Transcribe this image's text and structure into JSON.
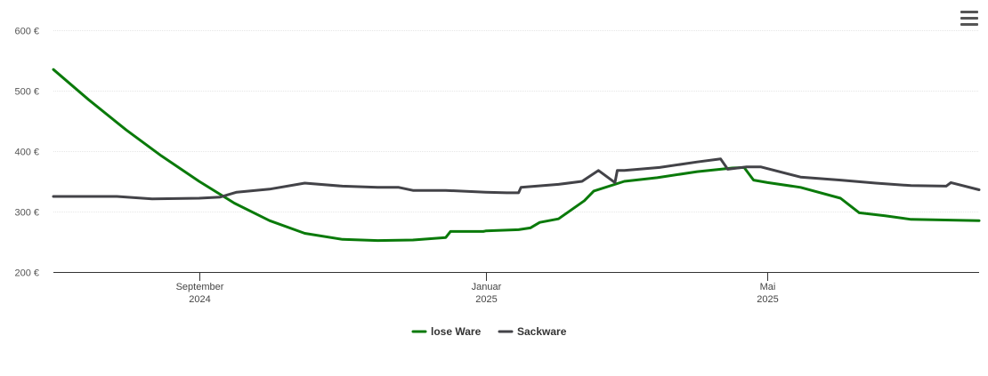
{
  "menu_icon": "hamburger-menu-icon",
  "chart_data": {
    "type": "line",
    "currency": "€",
    "ylim": [
      200,
      600
    ],
    "yticks": [
      {
        "value": 200,
        "label": "200 €"
      },
      {
        "value": 300,
        "label": "300 €"
      },
      {
        "value": 400,
        "label": "400 €"
      },
      {
        "value": 500,
        "label": "500 €"
      },
      {
        "value": 600,
        "label": "600 €"
      }
    ],
    "xlim": [
      "2024-07-01",
      "2025-07-30"
    ],
    "xticks": [
      {
        "date": "2024-09-01",
        "label_month": "September",
        "label_year": "2024"
      },
      {
        "date": "2025-01-01",
        "label_month": "Januar",
        "label_year": "2025"
      },
      {
        "date": "2025-05-01",
        "label_month": "Mai",
        "label_year": "2025"
      }
    ],
    "grid": true,
    "legend_position": "bottom-center",
    "series": [
      {
        "name": "lose Ware",
        "color": "#0a7a0a",
        "points": [
          [
            "2024-07-01",
            535
          ],
          [
            "2024-07-16",
            485
          ],
          [
            "2024-08-01",
            435
          ],
          [
            "2024-08-16",
            392
          ],
          [
            "2024-09-01",
            350
          ],
          [
            "2024-09-16",
            314
          ],
          [
            "2024-10-01",
            285
          ],
          [
            "2024-10-16",
            264
          ],
          [
            "2024-11-01",
            254
          ],
          [
            "2024-11-16",
            252
          ],
          [
            "2024-12-01",
            253
          ],
          [
            "2024-12-15",
            257
          ],
          [
            "2024-12-17",
            267
          ],
          [
            "2024-12-31",
            267
          ],
          [
            "2025-01-01",
            268
          ],
          [
            "2025-01-15",
            270
          ],
          [
            "2025-01-20",
            273
          ],
          [
            "2025-01-24",
            282
          ],
          [
            "2025-02-01",
            288
          ],
          [
            "2025-02-12",
            318
          ],
          [
            "2025-02-16",
            334
          ],
          [
            "2025-03-01",
            350
          ],
          [
            "2025-03-15",
            356
          ],
          [
            "2025-04-01",
            366
          ],
          [
            "2025-04-16",
            372
          ],
          [
            "2025-04-21",
            373
          ],
          [
            "2025-04-25",
            352
          ],
          [
            "2025-05-01",
            348
          ],
          [
            "2025-05-15",
            340
          ],
          [
            "2025-06-01",
            322
          ],
          [
            "2025-06-05",
            310
          ],
          [
            "2025-06-09",
            298
          ],
          [
            "2025-06-20",
            293
          ],
          [
            "2025-07-01",
            287
          ],
          [
            "2025-07-30",
            285
          ]
        ]
      },
      {
        "name": "Sackware",
        "color": "#434348",
        "points": [
          [
            "2024-07-01",
            325
          ],
          [
            "2024-07-28",
            325
          ],
          [
            "2024-08-12",
            321
          ],
          [
            "2024-09-01",
            322
          ],
          [
            "2024-09-10",
            324
          ],
          [
            "2024-09-17",
            332
          ],
          [
            "2024-10-01",
            337
          ],
          [
            "2024-10-16",
            347
          ],
          [
            "2024-11-01",
            342
          ],
          [
            "2024-11-16",
            340
          ],
          [
            "2024-11-25",
            340
          ],
          [
            "2024-12-01",
            335
          ],
          [
            "2024-12-15",
            335
          ],
          [
            "2025-01-01",
            332
          ],
          [
            "2025-01-10",
            331
          ],
          [
            "2025-01-15",
            331
          ],
          [
            "2025-01-16",
            340
          ],
          [
            "2025-02-01",
            345
          ],
          [
            "2025-02-11",
            350
          ],
          [
            "2025-02-18",
            368
          ],
          [
            "2025-02-25",
            348
          ],
          [
            "2025-02-26",
            368
          ],
          [
            "2025-03-01",
            368
          ],
          [
            "2025-03-16",
            373
          ],
          [
            "2025-04-01",
            382
          ],
          [
            "2025-04-11",
            387
          ],
          [
            "2025-04-14",
            370
          ],
          [
            "2025-04-22",
            374
          ],
          [
            "2025-04-28",
            374
          ],
          [
            "2025-05-15",
            357
          ],
          [
            "2025-06-01",
            352
          ],
          [
            "2025-06-16",
            347
          ],
          [
            "2025-07-01",
            343
          ],
          [
            "2025-07-16",
            342
          ],
          [
            "2025-07-18",
            348
          ],
          [
            "2025-07-30",
            336
          ]
        ]
      }
    ]
  }
}
